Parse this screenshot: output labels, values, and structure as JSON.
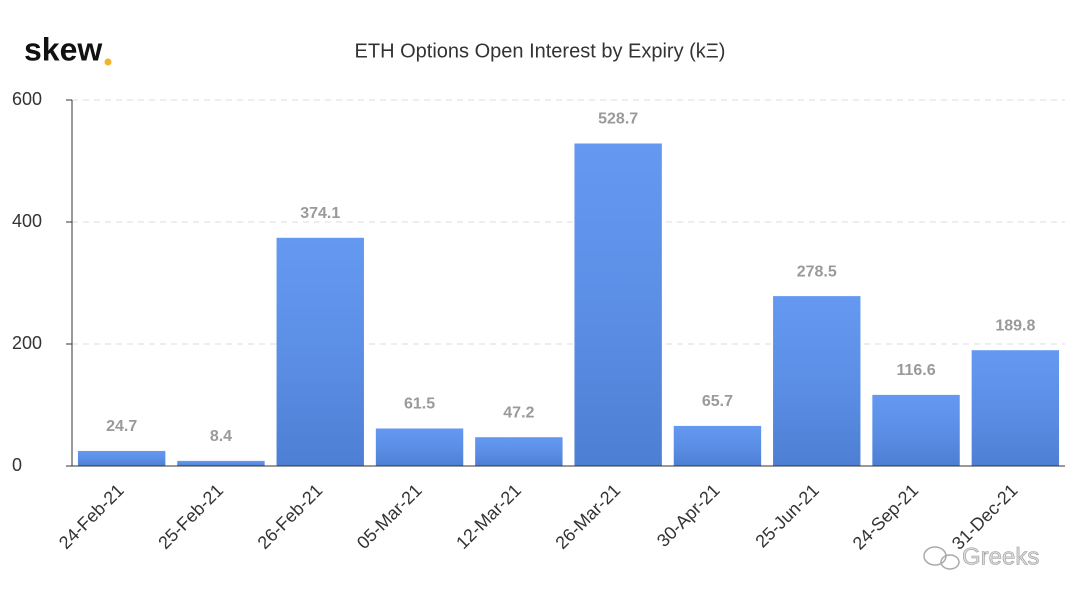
{
  "logo": "skew",
  "watermark": "Greeks",
  "chart_data": {
    "type": "bar",
    "title": "ETH Options Open Interest by Expiry (kΞ)",
    "categories": [
      "24-Feb-21",
      "25-Feb-21",
      "26-Feb-21",
      "05-Mar-21",
      "12-Mar-21",
      "26-Mar-21",
      "30-Apr-21",
      "25-Jun-21",
      "24-Sep-21",
      "31-Dec-21"
    ],
    "values": [
      24.7,
      8.4,
      374.1,
      61.5,
      47.2,
      528.7,
      65.7,
      278.5,
      116.6,
      189.8
    ],
    "color": "#5790f0",
    "ylim": [
      0,
      600
    ],
    "yticks": [
      0,
      200,
      400,
      600
    ],
    "grid": true
  }
}
